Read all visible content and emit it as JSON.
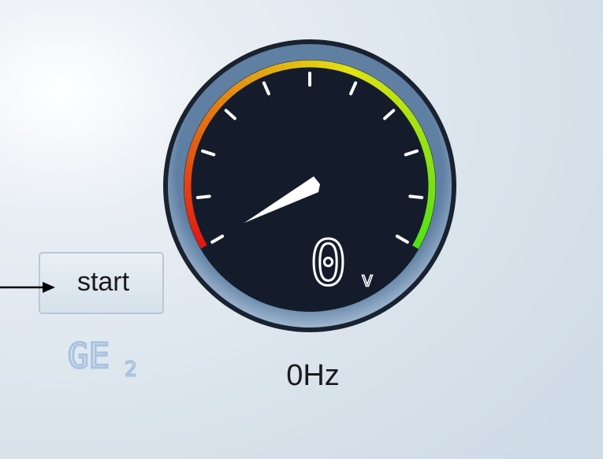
{
  "button": {
    "label": "start"
  },
  "logo": {
    "text": "GE",
    "subscript": "2"
  },
  "display": {
    "value": "0",
    "unit": "v"
  },
  "frequency": {
    "text": "0Hz"
  }
}
